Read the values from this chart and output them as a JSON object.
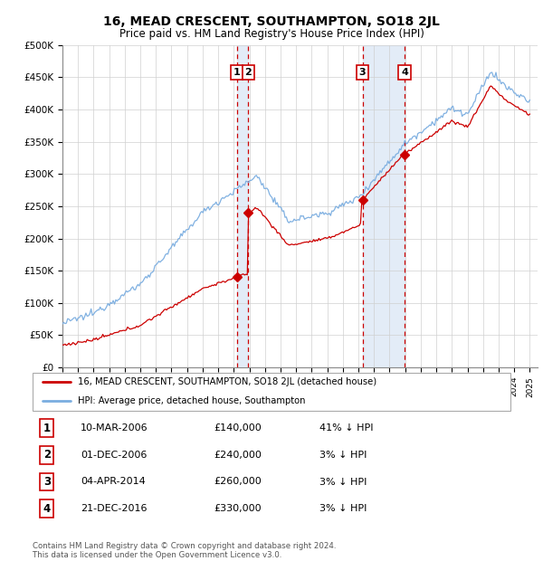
{
  "title": "16, MEAD CRESCENT, SOUTHAMPTON, SO18 2JL",
  "subtitle": "Price paid vs. HM Land Registry's House Price Index (HPI)",
  "xlim_start": 1995.0,
  "xlim_end": 2025.5,
  "ylim": [
    0,
    500000
  ],
  "yticks": [
    0,
    50000,
    100000,
    150000,
    200000,
    250000,
    300000,
    350000,
    400000,
    450000,
    500000
  ],
  "ytick_labels": [
    "£0",
    "£50K",
    "£100K",
    "£150K",
    "£200K",
    "£250K",
    "£300K",
    "£350K",
    "£400K",
    "£450K",
    "£500K"
  ],
  "xticks": [
    1995,
    1996,
    1997,
    1998,
    1999,
    2000,
    2001,
    2002,
    2003,
    2004,
    2005,
    2006,
    2007,
    2008,
    2009,
    2010,
    2011,
    2012,
    2013,
    2014,
    2015,
    2016,
    2017,
    2018,
    2019,
    2020,
    2021,
    2022,
    2023,
    2024,
    2025
  ],
  "sale_dates": [
    2006.19,
    2006.92,
    2014.26,
    2016.97
  ],
  "sale_prices": [
    140000,
    240000,
    260000,
    330000
  ],
  "sale_labels": [
    "1",
    "2",
    "3",
    "4"
  ],
  "hpi_color": "#7aade0",
  "price_color": "#cc0000",
  "vline_color": "#cc0000",
  "shade_color": "#dce8f5",
  "legend_entries": [
    "16, MEAD CRESCENT, SOUTHAMPTON, SO18 2JL (detached house)",
    "HPI: Average price, detached house, Southampton"
  ],
  "table_data": [
    [
      "1",
      "10-MAR-2006",
      "£140,000",
      "41% ↓ HPI"
    ],
    [
      "2",
      "01-DEC-2006",
      "£240,000",
      "3% ↓ HPI"
    ],
    [
      "3",
      "04-APR-2014",
      "£260,000",
      "3% ↓ HPI"
    ],
    [
      "4",
      "21-DEC-2016",
      "£330,000",
      "3% ↓ HPI"
    ]
  ],
  "footer": "Contains HM Land Registry data © Crown copyright and database right 2024.\nThis data is licensed under the Open Government Licence v3.0.",
  "background_color": "#ffffff"
}
